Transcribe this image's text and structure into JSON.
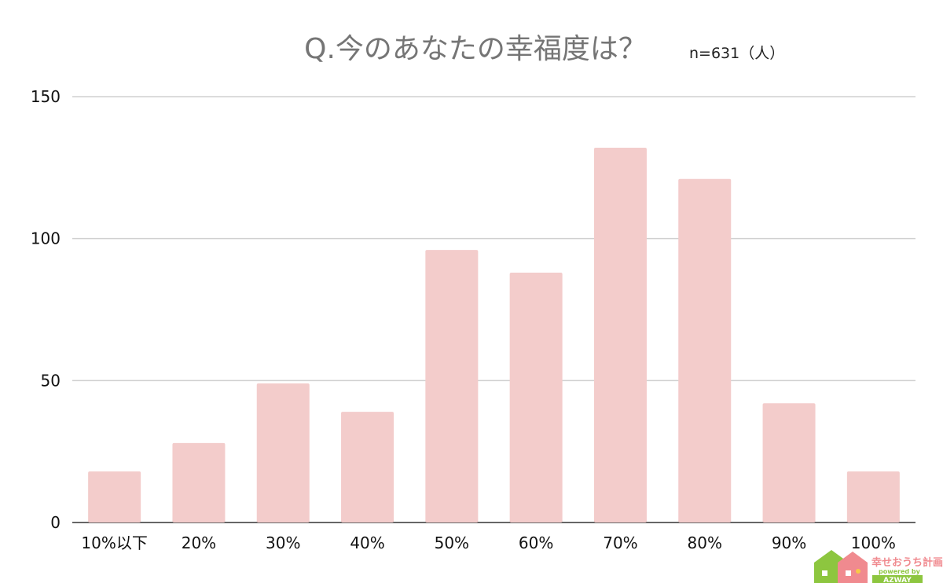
{
  "chart_data": {
    "type": "bar",
    "title": "Q.今のあなたの幸福度は？",
    "subtitle": "n=631（人）",
    "categories": [
      "10%以下",
      "20%",
      "30%",
      "40%",
      "50%",
      "60%",
      "70%",
      "80%",
      "90%",
      "100%"
    ],
    "values": [
      18,
      28,
      49,
      39,
      96,
      88,
      132,
      121,
      42,
      18
    ],
    "xlabel": "",
    "ylabel": "",
    "ylim": [
      0,
      150
    ],
    "yticks": [
      "0",
      "50",
      "100",
      "150"
    ],
    "grid": true,
    "legend": "none",
    "bar_color": "#f3cccb"
  },
  "brand": {
    "name": "幸せおうち計画",
    "tagline": "powered by",
    "company": "AZWAY",
    "colors": {
      "green": "#8dc63f",
      "pink": "#f08a8f",
      "yellow": "#f7c948"
    }
  }
}
